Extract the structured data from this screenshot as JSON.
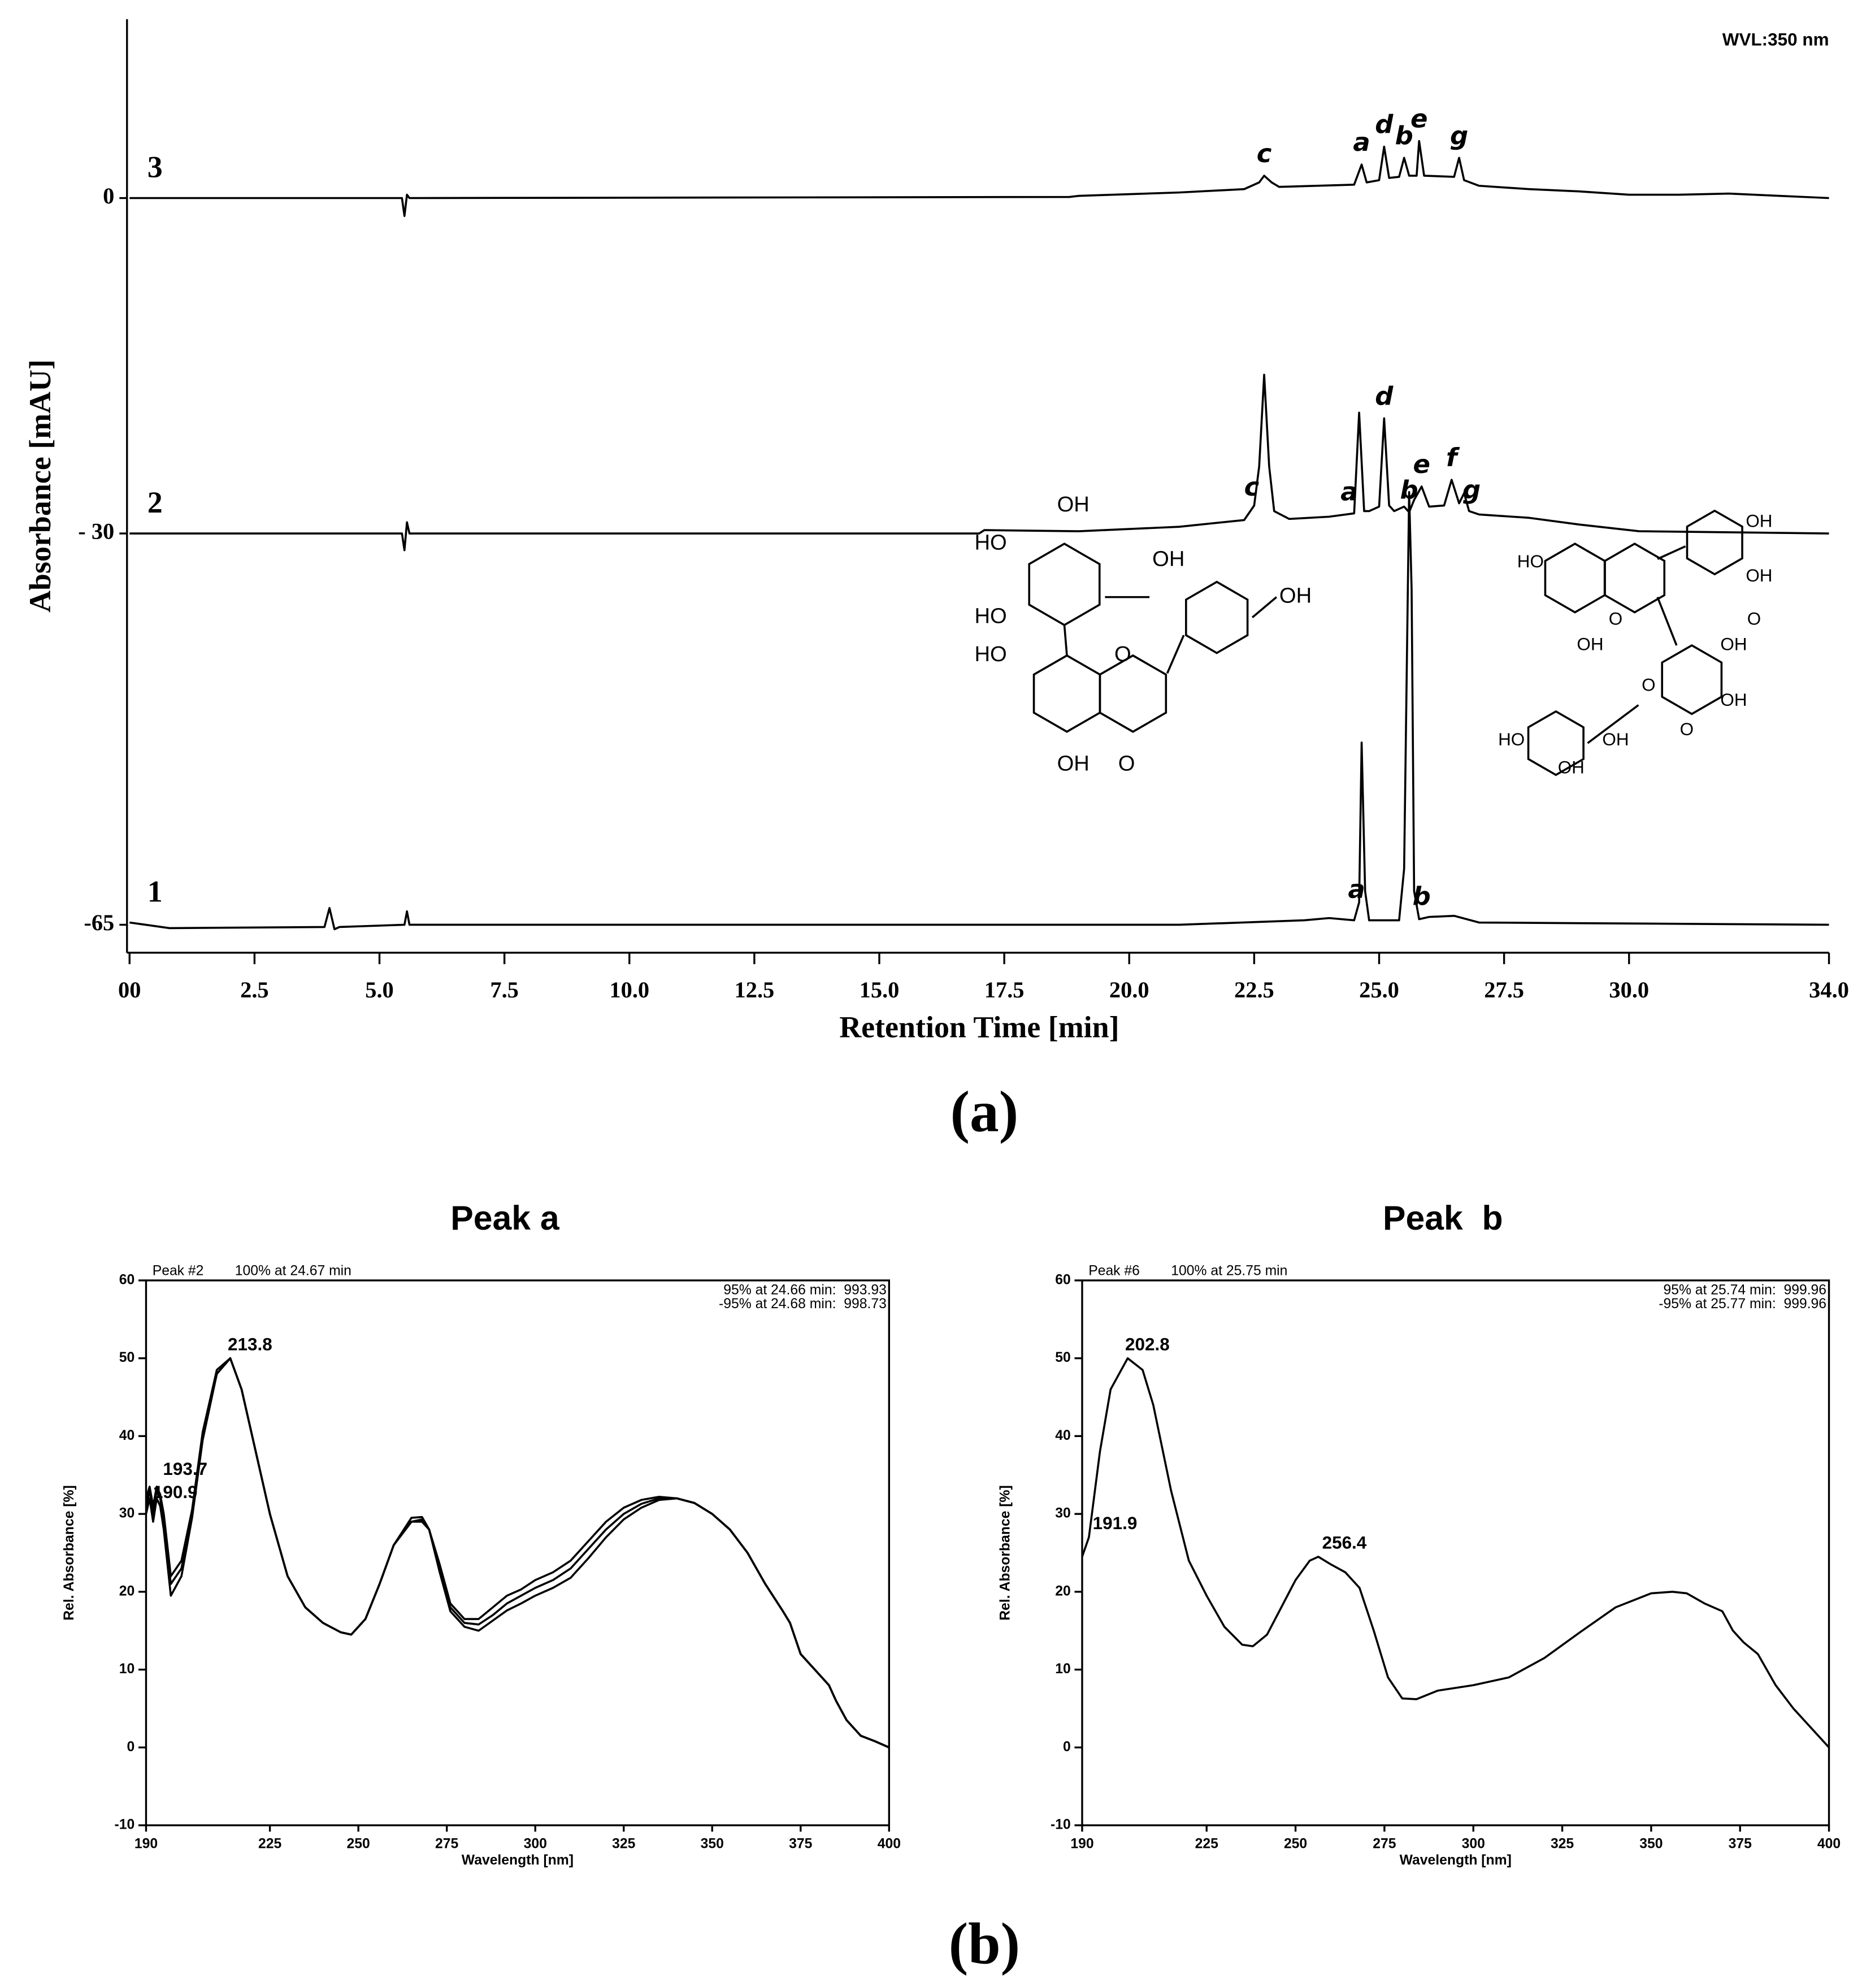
{
  "chart_data": [
    {
      "type": "line",
      "annotation": "WVL:350 nm",
      "x_label": "Retention Time [min]",
      "y_label": "Absorbance [mAU]",
      "panel_label": "(a)",
      "xlim": [
        0,
        34
      ],
      "ylim": [
        -67.5,
        16
      ],
      "xticks": [
        {
          "value": 0,
          "label": "00"
        },
        2.5,
        {
          "value": 5,
          "label": "5.0"
        },
        7.5,
        {
          "value": 10,
          "label": "10.0"
        },
        12.5,
        {
          "value": 15,
          "label": "15.0"
        },
        17.5,
        {
          "value": 20,
          "label": "20.0"
        },
        22.5,
        {
          "value": 25,
          "label": "25.0"
        },
        27.5,
        {
          "value": 30,
          "label": "30.0"
        },
        {
          "value": 34,
          "label": "34.0"
        }
      ],
      "yticks": [
        0,
        {
          "value": -30,
          "label": "- 30"
        },
        -65
      ],
      "series": [
        {
          "name": "1",
          "color": "#000000",
          "x": [
            0,
            0.8,
            3.9,
            4.0,
            4.1,
            4.2,
            5.5,
            5.55,
            5.6,
            21,
            23.5,
            24,
            24.5,
            24.6,
            24.65,
            24.72,
            24.8,
            25.4,
            25.5,
            25.6,
            25.65,
            25.7,
            25.8,
            26,
            26.5,
            27,
            34
          ],
          "values": [
            -64.8,
            -65.3,
            -65.2,
            -63.5,
            -65.4,
            -65.2,
            -65,
            -63.8,
            -65,
            -65,
            -64.6,
            -64.4,
            -64.6,
            -63,
            -48.7,
            -62,
            -64.6,
            -64.6,
            -60,
            -26.3,
            -35,
            -62,
            -64.5,
            -64.3,
            -64.2,
            -64.8,
            -65
          ],
          "labels": [
            {
              "text": "a",
              "x": 24.55
            },
            {
              "text": "b",
              "x": 25.85
            }
          ]
        },
        {
          "name": "2",
          "color": "#000000",
          "x": [
            0,
            5.45,
            5.5,
            5.55,
            5.6,
            17,
            17.1,
            19,
            21,
            22.3,
            22.5,
            22.6,
            22.7,
            22.8,
            22.9,
            23.2,
            24,
            24.5,
            24.6,
            24.7,
            24.8,
            25,
            25.1,
            25.2,
            25.3,
            25.5,
            25.6,
            25.7,
            25.85,
            26,
            26.3,
            26.45,
            26.6,
            26.7,
            26.8,
            27,
            28,
            29,
            30.2,
            34
          ],
          "values": [
            -30,
            -30,
            -31.5,
            -29,
            -30,
            -30,
            -29.7,
            -29.8,
            -29.4,
            -28.8,
            -27.5,
            -24,
            -15.8,
            -24,
            -28,
            -28.7,
            -28.5,
            -28.2,
            -19.2,
            -28,
            -28,
            -27.6,
            -19.7,
            -27.5,
            -28,
            -27.6,
            -28.1,
            -27,
            -25.8,
            -27.6,
            -27.5,
            -25.2,
            -27.3,
            -26.4,
            -28,
            -28.3,
            -28.6,
            -29.2,
            -29.8,
            -30
          ],
          "labels": [
            {
              "text": "c",
              "x": 22.45
            },
            {
              "text": "a",
              "x": 24.4
            },
            {
              "text": "d",
              "x": 25.1
            },
            {
              "text": "b",
              "x": 25.6
            },
            {
              "text": "e",
              "x": 25.85
            },
            {
              "text": "f",
              "x": 26.45
            },
            {
              "text": "g",
              "x": 26.85
            }
          ]
        },
        {
          "name": "3",
          "color": "#000000",
          "x": [
            0,
            4.2,
            4.3,
            5.45,
            5.5,
            5.55,
            5.6,
            18.8,
            19,
            21,
            22.3,
            22.6,
            22.7,
            22.85,
            23,
            24.5,
            24.65,
            24.75,
            25,
            25.1,
            25.2,
            25.4,
            25.5,
            25.6,
            25.75,
            25.8,
            25.9,
            26.5,
            26.6,
            26.7,
            27,
            28,
            29,
            30,
            31,
            32,
            33,
            34
          ],
          "values": [
            0,
            0,
            0,
            0,
            -1.6,
            0.3,
            0,
            0.1,
            0.2,
            0.5,
            0.8,
            1.4,
            2.0,
            1.4,
            1.0,
            1.2,
            3.0,
            1.4,
            1.6,
            4.6,
            1.8,
            1.9,
            3.6,
            2.0,
            2.0,
            5.1,
            2.0,
            1.9,
            3.6,
            1.6,
            1.1,
            0.8,
            0.6,
            0.3,
            0.3,
            0.4,
            0.2,
            0
          ],
          "labels": [
            {
              "text": "c",
              "x": 22.7
            },
            {
              "text": "a",
              "x": 24.65
            },
            {
              "text": "d",
              "x": 25.1
            },
            {
              "text": "b",
              "x": 25.5
            },
            {
              "text": "e",
              "x": 25.8
            },
            {
              "text": "g",
              "x": 26.6
            }
          ]
        }
      ]
    },
    {
      "type": "line",
      "title": "Peak a",
      "panel_label": "(b)",
      "header_left": [
        "Peak #2",
        "100% at 24.67 min"
      ],
      "header_right": [
        "95% at 24.66 min:  993.93",
        "-95% at 24.68 min:  998.73"
      ],
      "x_label": "Wavelength [nm]",
      "y_label": "Rel. Absorbance [%]",
      "xlim": [
        190,
        400
      ],
      "ylim": [
        -10,
        60
      ],
      "xticks": [
        190,
        225,
        250,
        275,
        300,
        325,
        350,
        375,
        400
      ],
      "yticks": [
        -10,
        0,
        10,
        20,
        30,
        40,
        50,
        60
      ],
      "x": [
        190,
        191,
        192,
        193,
        194,
        195,
        197,
        200,
        203,
        206,
        210,
        213.8,
        217,
        220,
        225,
        230,
        235,
        240,
        245,
        248,
        252,
        256,
        260,
        265,
        268,
        270,
        273,
        276,
        280,
        284,
        288,
        292,
        296,
        300,
        305,
        310,
        315,
        320,
        325,
        330,
        335,
        340,
        345,
        350,
        355,
        360,
        365,
        370,
        372,
        375,
        380,
        383,
        385,
        388,
        392,
        396,
        400
      ],
      "series": [
        {
          "color": "#000000",
          "values": [
            31,
            33,
            30,
            33,
            32,
            29,
            21,
            23,
            30,
            40,
            48,
            50,
            46,
            40,
            30,
            22,
            18,
            16,
            14.8,
            14.5,
            16.5,
            21,
            26,
            29,
            29.3,
            28,
            23,
            18,
            16,
            15.8,
            17,
            18.5,
            19.5,
            20.5,
            21.5,
            23,
            25.5,
            28,
            30,
            31.3,
            32,
            32,
            31.4,
            30,
            28,
            25,
            21,
            17.5,
            16,
            12,
            9.5,
            8,
            6,
            3.5,
            1.5,
            0.8,
            0
          ]
        },
        {
          "color": "#000000",
          "values": [
            30,
            32,
            29,
            32,
            31,
            28,
            19.5,
            22,
            29.5,
            39.5,
            48,
            50,
            46,
            40,
            30,
            22,
            18,
            16,
            14.8,
            14.5,
            16.5,
            21,
            26,
            29.5,
            29.6,
            28,
            22.5,
            17.5,
            15.5,
            15,
            16.3,
            17.6,
            18.5,
            19.5,
            20.5,
            21.8,
            24.3,
            27,
            29.3,
            30.8,
            31.8,
            32,
            31.4,
            30,
            28,
            25,
            21,
            17.5,
            16,
            12,
            9.5,
            8,
            6,
            3.5,
            1.5,
            0.8,
            0
          ]
        },
        {
          "color": "#000000",
          "values": [
            32,
            33.5,
            31,
            33.5,
            32.5,
            30,
            22,
            24,
            30.5,
            40.5,
            48.5,
            50,
            46,
            40,
            30,
            22,
            18,
            16,
            14.8,
            14.5,
            16.5,
            21,
            26,
            29,
            29,
            28,
            23.5,
            18.5,
            16.5,
            16.5,
            18,
            19.5,
            20.3,
            21.5,
            22.5,
            24,
            26.5,
            29,
            30.8,
            31.8,
            32.2,
            32,
            31.4,
            30,
            28,
            25,
            21,
            17.5,
            16,
            12,
            9.5,
            8,
            6,
            3.5,
            1.5,
            0.8,
            0
          ]
        }
      ],
      "peaks": [
        {
          "x": 213.8,
          "y": 50
        },
        {
          "x": 193.7,
          "y": 34
        },
        {
          "x": 190.9,
          "y": 31
        }
      ]
    },
    {
      "type": "line",
      "title": "Peak  b",
      "header_left": [
        "Peak #6",
        "100% at 25.75 min"
      ],
      "header_right": [
        "95% at 25.74 min:  999.96",
        "-95% at 25.77 min:  999.96"
      ],
      "x_label": "Wavelength [nm]",
      "y_label": "Rel. Absorbance [%]",
      "xlim": [
        190,
        400
      ],
      "ylim": [
        -10,
        60
      ],
      "xticks": [
        190,
        225,
        250,
        275,
        300,
        325,
        350,
        375,
        400
      ],
      "yticks": [
        -10,
        0,
        10,
        20,
        30,
        40,
        50,
        60
      ],
      "x": [
        190,
        191.9,
        195,
        198,
        202.8,
        207,
        210,
        215,
        220,
        225,
        230,
        235,
        238,
        242,
        246,
        250,
        254,
        256.4,
        260,
        264,
        268,
        272,
        276,
        280,
        284,
        290,
        300,
        310,
        320,
        330,
        340,
        350,
        356,
        360,
        365,
        370,
        373,
        376,
        380,
        385,
        390,
        395,
        400
      ],
      "series": [
        {
          "color": "#000000",
          "values": [
            24.5,
            27,
            38,
            46,
            50,
            48.5,
            44,
            33,
            24,
            19.5,
            15.5,
            13.2,
            13,
            14.5,
            18,
            21.5,
            24,
            24.5,
            23.5,
            22.5,
            20.5,
            15,
            9,
            6.3,
            6.2,
            7.3,
            8,
            9,
            11.5,
            14.8,
            18,
            19.8,
            20,
            19.8,
            18.5,
            17.5,
            15,
            13.5,
            12,
            8,
            5,
            2.5,
            0
          ]
        }
      ],
      "peaks": [
        {
          "x": 202.8,
          "y": 50
        },
        {
          "x": 191.9,
          "y": 27
        },
        {
          "x": 256.4,
          "y": 24.5
        }
      ]
    }
  ],
  "structures": [
    {
      "labels": [
        "OH",
        "HO",
        "OH",
        "HO",
        "OH",
        "HO",
        "O",
        "OH",
        "O"
      ]
    },
    {
      "labels": [
        "OH",
        "HO",
        "OH",
        "O",
        "O",
        "OH",
        "O",
        "OH",
        "OH",
        "HO",
        "OH",
        "OH",
        "O"
      ]
    }
  ]
}
